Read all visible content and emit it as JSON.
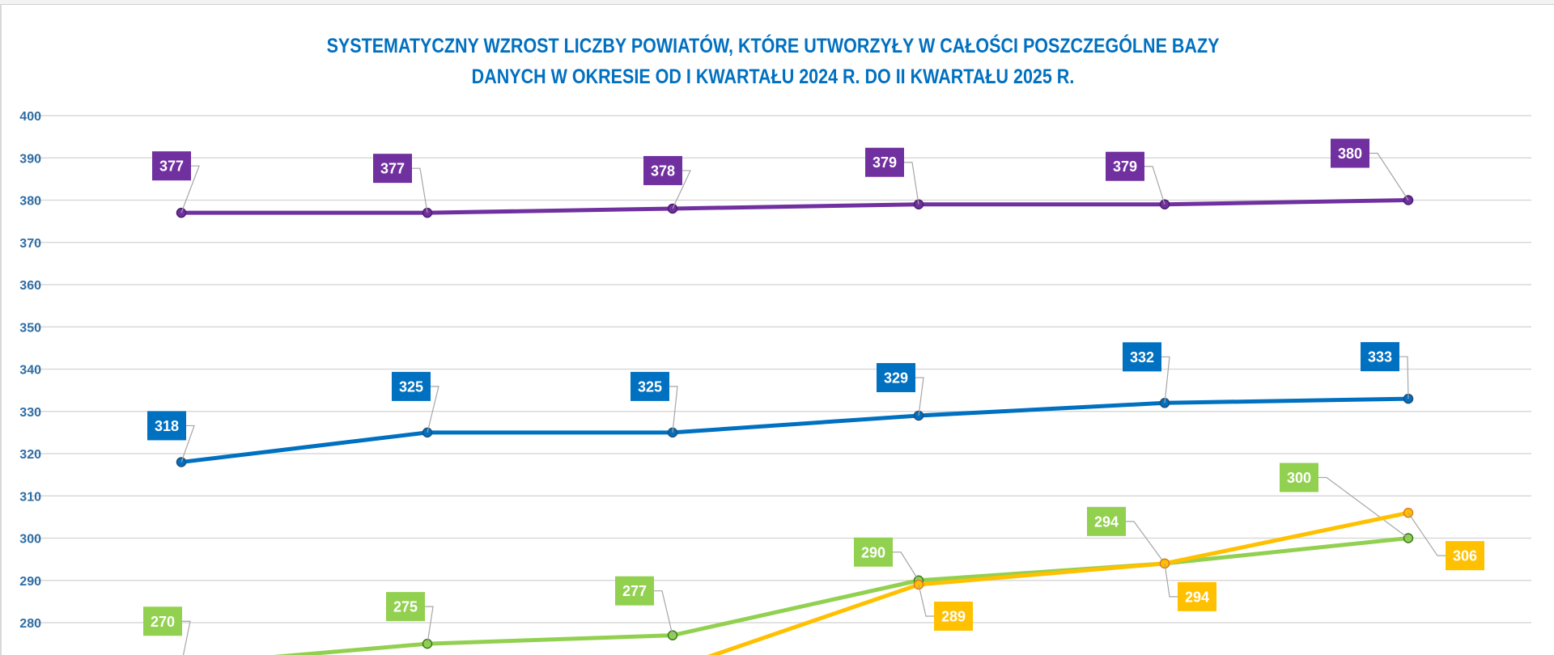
{
  "chart_data": {
    "type": "line",
    "title_lines": [
      "SYSTEMATYCZNY WZROST LICZBY POWIATÓW, KTÓRE UTWORZYŁY W CAŁOŚCI POSZCZEGÓLNE BAZY",
      "DANYCH W OKRESIE OD I KWARTAŁU 2024 R. DO II KWARTAŁU 2025 R."
    ],
    "ylim": [
      280,
      400
    ],
    "yticks": [
      "400",
      "390",
      "380",
      "370",
      "360",
      "350",
      "340",
      "330",
      "320",
      "310",
      "300",
      "290",
      "280"
    ],
    "grid": true,
    "series": [
      {
        "color": "#7030A0",
        "values": [
          377,
          377,
          378,
          379,
          379,
          380
        ]
      },
      {
        "color": "#0070C0",
        "values": [
          318,
          325,
          325,
          329,
          332,
          333
        ]
      },
      {
        "color": "#92D050",
        "values": [
          270,
          275,
          277,
          290,
          294,
          300
        ]
      },
      {
        "color": "#FFC000",
        "values": [
          null,
          null,
          null,
          289,
          294,
          306
        ]
      }
    ]
  }
}
